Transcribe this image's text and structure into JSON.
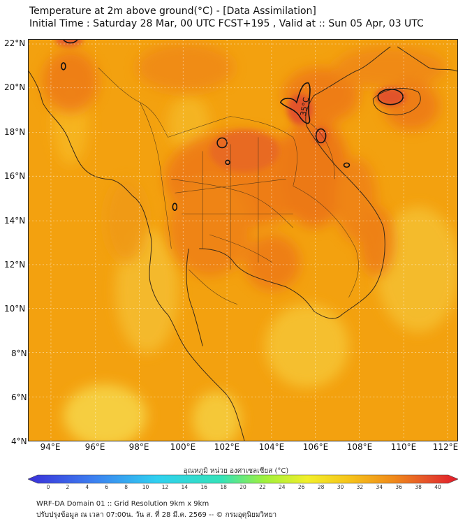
{
  "header": {
    "title_line1": "Temperature at 2m above ground(°C) - [Data Assimilation]",
    "title_line2": "Initial Time : Saturday 28 Mar, 00 UTC FCST+195 , Valid at :: Sun 05 Apr, 03 UTC"
  },
  "map": {
    "lat_labels": [
      "22°N",
      "20°N",
      "18°N",
      "16°N",
      "14°N",
      "12°N",
      "10°N",
      "8°N",
      "6°N",
      "4°N"
    ],
    "lon_labels": [
      "94°E",
      "96°E",
      "98°E",
      "100°E",
      "102°E",
      "104°E",
      "106°E",
      "108°E",
      "110°E",
      "112°E"
    ],
    "contour_label": "35°C",
    "colors": {
      "base": "#f3a10f",
      "warm": "#ee7a18",
      "hot": "#e2522a",
      "cool": "#f5d34a",
      "land_line": "#3a2a18"
    }
  },
  "colorbar": {
    "title": "อุณหภูมิ หน่วย องศาเซลเซียส (°C)",
    "ticks": [
      "0",
      "2",
      "4",
      "6",
      "8",
      "10",
      "12",
      "14",
      "16",
      "18",
      "20",
      "22",
      "24",
      "26",
      "28",
      "30",
      "32",
      "34",
      "36",
      "38",
      "40"
    ]
  },
  "footer": {
    "line1": "WRF-DA Domain 01 :: Grid Resolution 9km x 9km",
    "line2": "ปรับปรุงข้อมูล ณ เวลา 07:00น. วัน ส. ที่ 28 มี.ค. 2569 -- © กรมอุตุนิยมวิทยา"
  }
}
